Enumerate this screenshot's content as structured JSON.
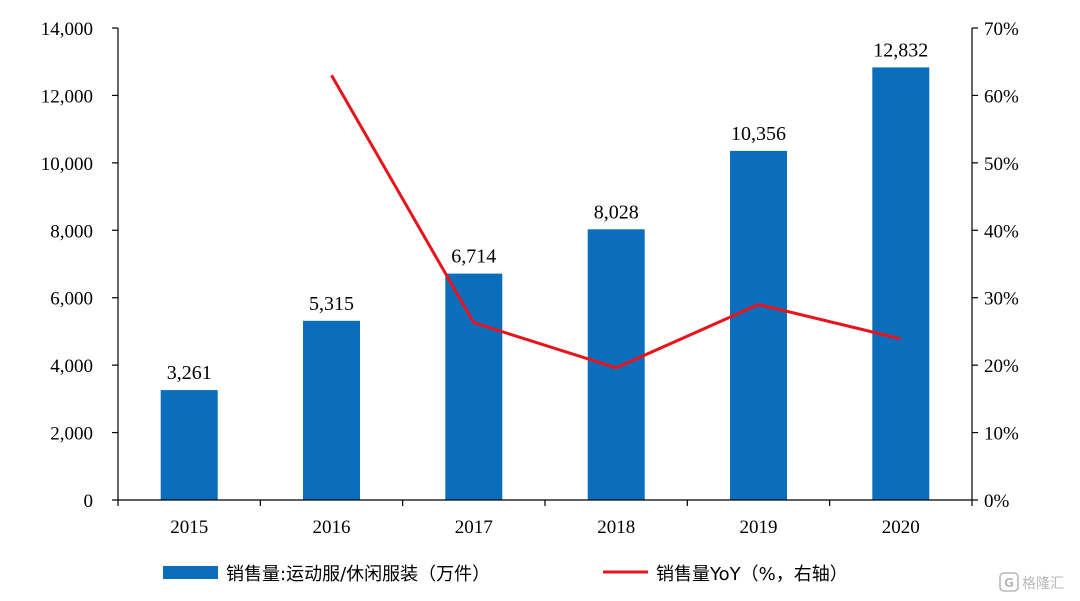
{
  "chart_data": {
    "type": "bar",
    "categories": [
      "2015",
      "2016",
      "2017",
      "2018",
      "2019",
      "2020"
    ],
    "series": [
      {
        "name": "销售量:运动服/休闲服装（万件）",
        "type": "bar",
        "axis": "left",
        "values": [
          3261,
          5315,
          6714,
          8028,
          10356,
          12832
        ],
        "labels": [
          "3,261",
          "5,315",
          "6,714",
          "8,028",
          "10,356",
          "12,832"
        ],
        "color": "#0a6ebd"
      },
      {
        "name": "销售量YoY（%，右轴）",
        "type": "line",
        "axis": "right",
        "values": [
          null,
          63.0,
          26.3,
          19.6,
          29.0,
          23.9
        ],
        "color": "#e8141b"
      }
    ],
    "left_axis": {
      "ylim": [
        0,
        14000
      ],
      "ticks": [
        0,
        2000,
        4000,
        6000,
        8000,
        10000,
        12000,
        14000
      ],
      "tick_labels": [
        "0",
        "2,000",
        "4,000",
        "6,000",
        "8,000",
        "10,000",
        "12,000",
        "14,000"
      ]
    },
    "right_axis": {
      "ylim": [
        0,
        70
      ],
      "ticks": [
        0,
        10,
        20,
        30,
        40,
        50,
        60,
        70
      ],
      "tick_labels": [
        "0%",
        "10%",
        "20%",
        "30%",
        "40%",
        "50%",
        "60%",
        "70%"
      ]
    },
    "grid": false,
    "legend": "bottom"
  },
  "watermark": {
    "text": "格隆汇",
    "icon": "logo-icon"
  }
}
